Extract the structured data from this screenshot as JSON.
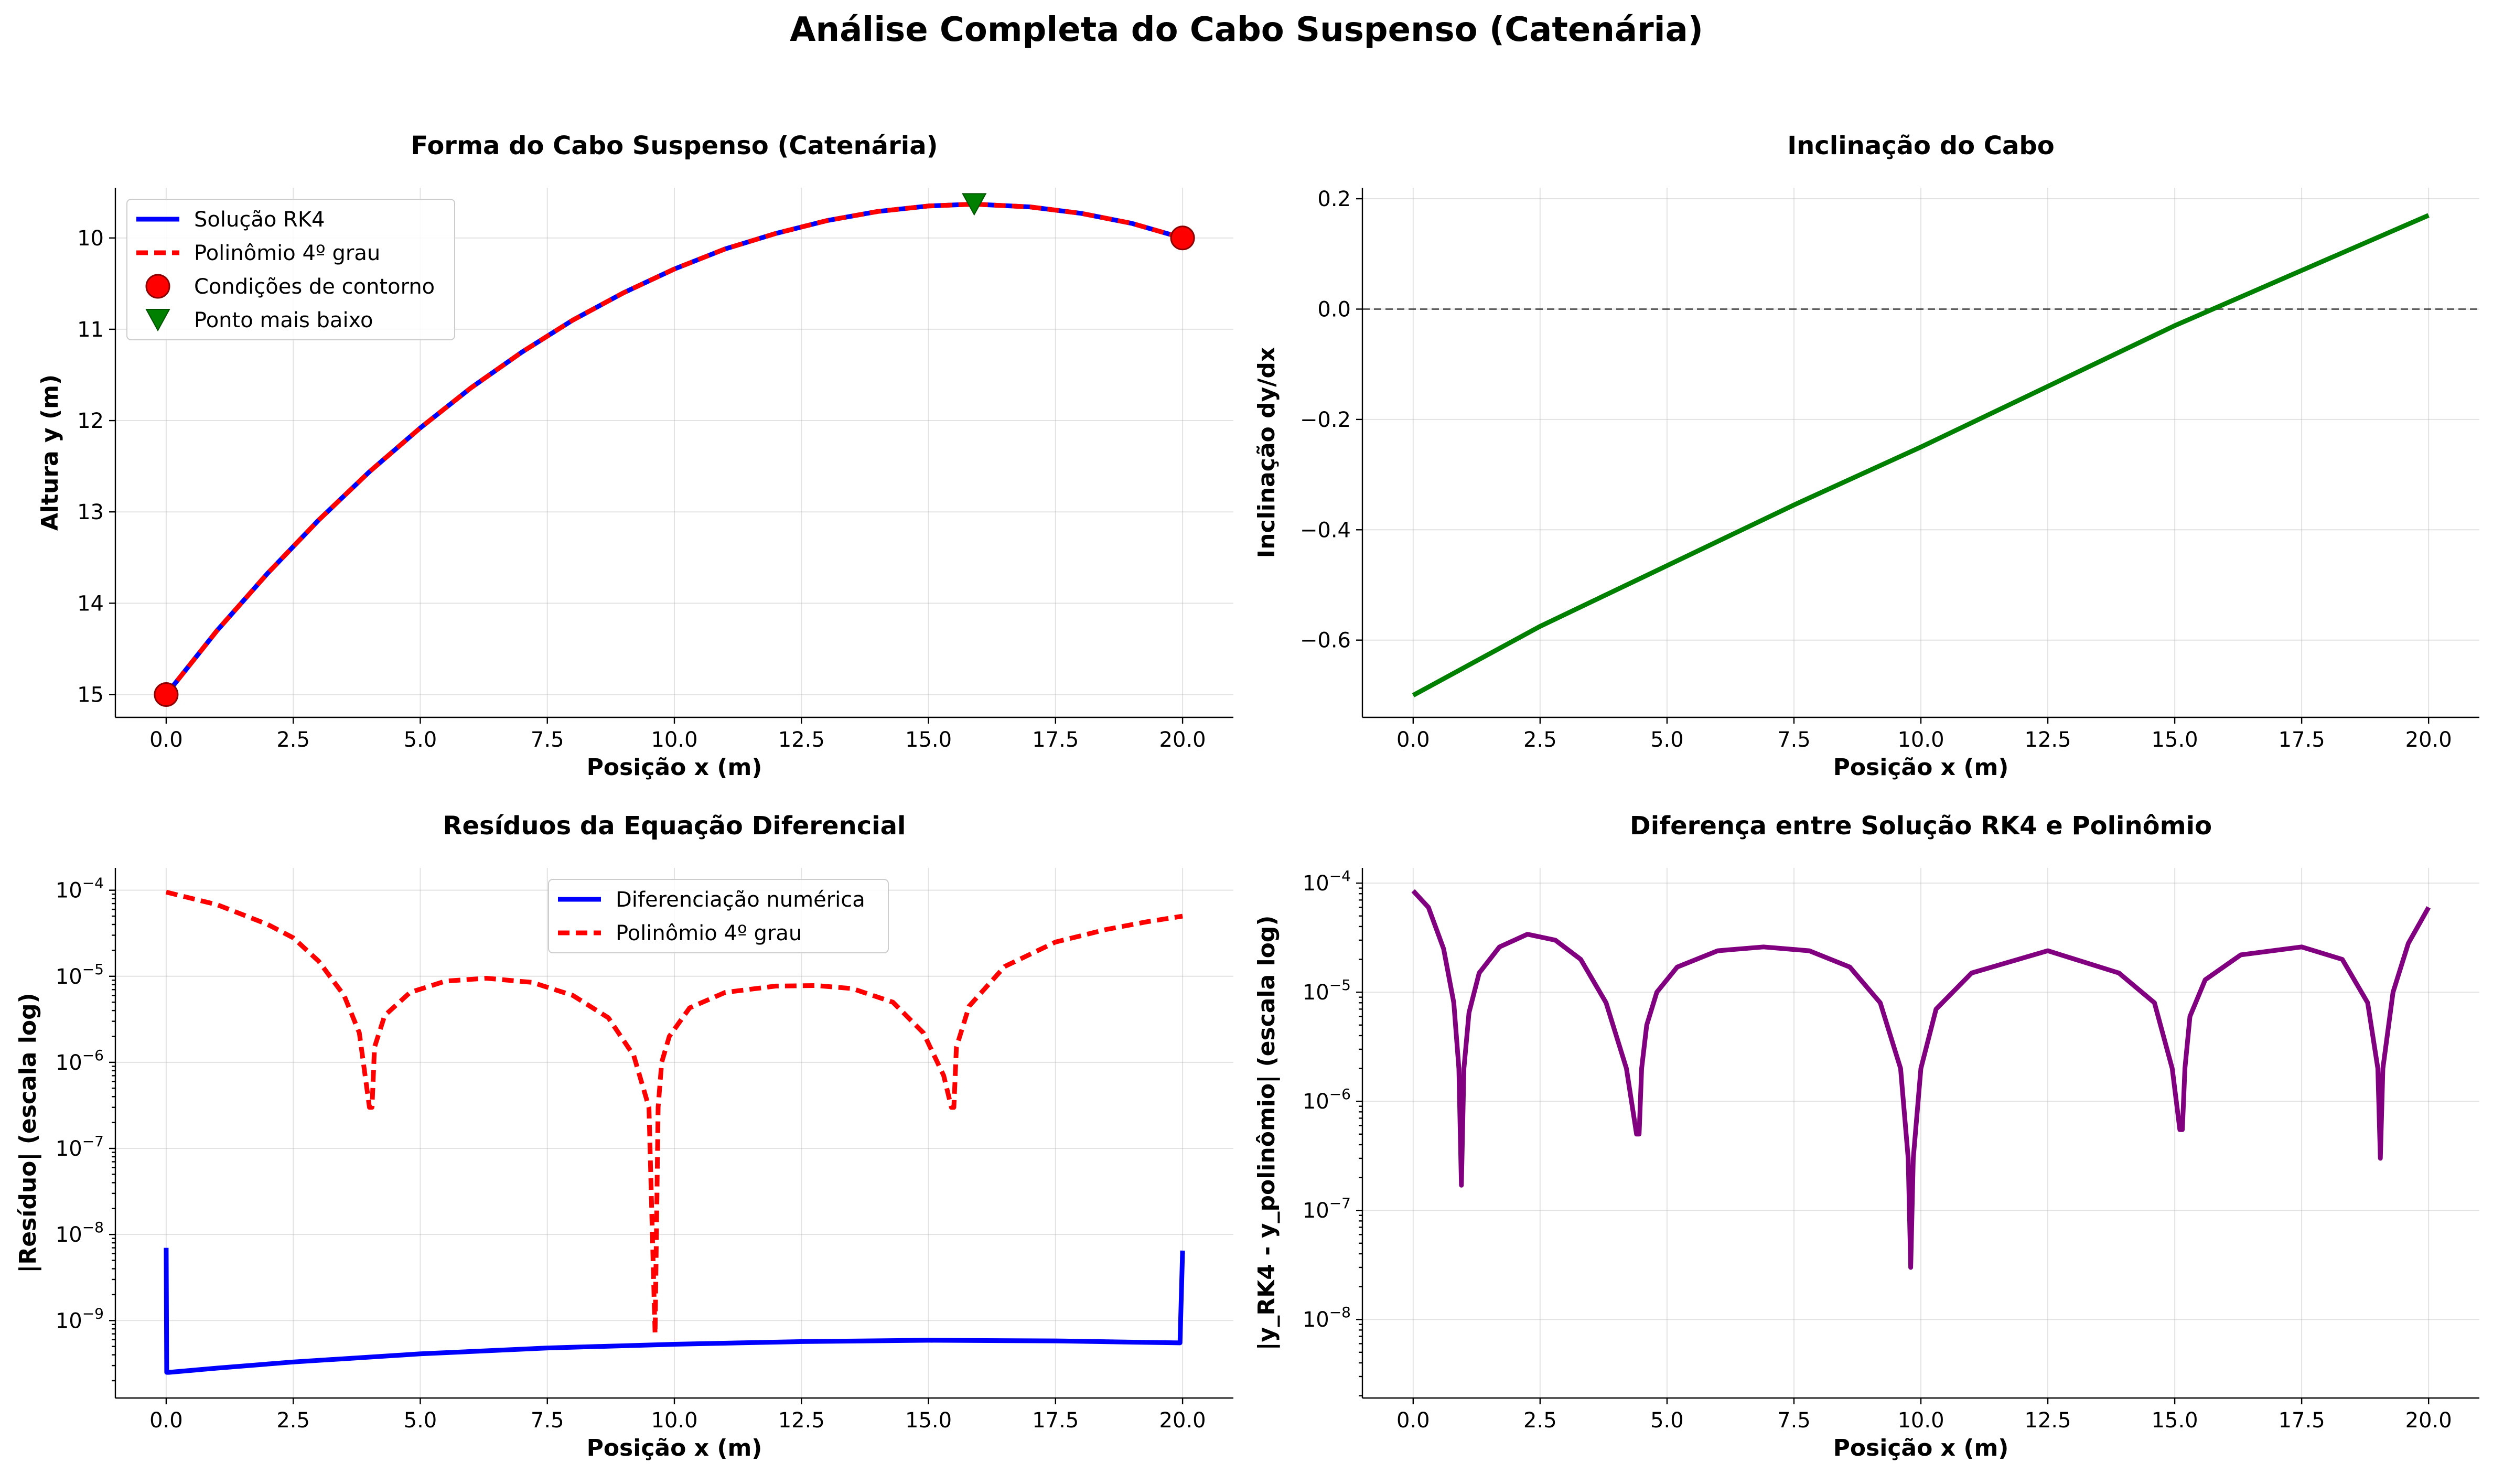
{
  "figure": {
    "suptitle": "Análise Completa do Cabo Suspenso (Catenária)"
  },
  "chart_data": [
    {
      "id": "shape",
      "type": "line",
      "title": "Forma do Cabo Suspenso (Catenária)",
      "xlabel": "Posição x (m)",
      "ylabel": "Altura y (m)",
      "xlim": [
        -1.0,
        21.0
      ],
      "ylim": [
        15.25,
        9.45
      ],
      "yscale": "linear",
      "y_inverted": true,
      "grid": true,
      "legend_position": "upper left",
      "x_ticks": [
        0,
        2.5,
        5,
        7.5,
        10,
        12.5,
        15,
        17.5,
        20
      ],
      "x_tick_labels": [
        "0.0",
        "2.5",
        "5.0",
        "7.5",
        "10.0",
        "12.5",
        "15.0",
        "17.5",
        "20.0"
      ],
      "y_ticks": [
        10,
        11,
        12,
        13,
        14,
        15
      ],
      "y_tick_labels": [
        "10",
        "11",
        "12",
        "13",
        "14",
        "15"
      ],
      "series": [
        {
          "name": "Solução RK4",
          "kind": "line",
          "color": "#0000ff",
          "dash": "solid",
          "x": [
            0,
            1,
            2,
            3,
            4,
            5,
            6,
            7,
            8,
            9,
            10,
            11,
            12,
            13,
            14,
            15,
            15.9,
            17,
            18,
            19,
            20
          ],
          "y": [
            15.0,
            14.3,
            13.67,
            13.09,
            12.56,
            12.08,
            11.64,
            11.25,
            10.9,
            10.6,
            10.34,
            10.12,
            9.95,
            9.81,
            9.71,
            9.65,
            9.63,
            9.66,
            9.73,
            9.84,
            10.0
          ]
        },
        {
          "name": "Polinômio 4º grau",
          "kind": "line",
          "color": "#ff0000",
          "dash": "dashed",
          "x": [
            0,
            1,
            2,
            3,
            4,
            5,
            6,
            7,
            8,
            9,
            10,
            11,
            12,
            13,
            14,
            15,
            15.9,
            17,
            18,
            19,
            20
          ],
          "y": [
            15.0,
            14.3,
            13.67,
            13.09,
            12.56,
            12.08,
            11.64,
            11.25,
            10.9,
            10.6,
            10.34,
            10.12,
            9.95,
            9.81,
            9.71,
            9.65,
            9.63,
            9.66,
            9.73,
            9.84,
            10.0
          ]
        },
        {
          "name": "Condições de contorno",
          "kind": "marker",
          "marker": "circle",
          "color": "#ff0000",
          "x": [
            0,
            20
          ],
          "y": [
            15.0,
            10.0
          ]
        },
        {
          "name": "Ponto mais baixo",
          "kind": "marker",
          "marker": "triangle-down",
          "color": "#008000",
          "x": [
            15.9
          ],
          "y": [
            9.63
          ]
        }
      ]
    },
    {
      "id": "slope",
      "type": "line",
      "title": "Inclinação do Cabo",
      "xlabel": "Posição x (m)",
      "ylabel": "Inclinação dy/dx",
      "xlim": [
        -1.0,
        21.0
      ],
      "ylim": [
        -0.74,
        0.22
      ],
      "yscale": "linear",
      "grid": true,
      "hline": 0.0,
      "x_ticks": [
        0,
        2.5,
        5,
        7.5,
        10,
        12.5,
        15,
        17.5,
        20
      ],
      "x_tick_labels": [
        "0.0",
        "2.5",
        "5.0",
        "7.5",
        "10.0",
        "12.5",
        "15.0",
        "17.5",
        "20.0"
      ],
      "y_ticks": [
        0.2,
        0.0,
        -0.2,
        -0.4,
        -0.6
      ],
      "y_tick_labels": [
        "0.2",
        "0.0",
        "−0.2",
        "−0.4",
        "−0.6"
      ],
      "series": [
        {
          "kind": "line",
          "color": "#008000",
          "dash": "solid",
          "x": [
            0,
            2.5,
            5,
            7.5,
            10,
            12.5,
            15,
            17.5,
            20
          ],
          "y": [
            -0.7,
            -0.575,
            -0.465,
            -0.355,
            -0.25,
            -0.14,
            -0.03,
            0.07,
            0.17
          ]
        }
      ]
    },
    {
      "id": "residuals",
      "type": "line",
      "title": "Resíduos da Equação Diferencial",
      "xlabel": "Posição x (m)",
      "ylabel": "|Resíduo| (escala log)",
      "xlim": [
        -1.0,
        21.0
      ],
      "ylim_log10": [
        -9.9,
        -3.74
      ],
      "yscale": "log",
      "grid": true,
      "legend_position": "upper center",
      "x_ticks": [
        0,
        2.5,
        5,
        7.5,
        10,
        12.5,
        15,
        17.5,
        20
      ],
      "x_tick_labels": [
        "0.0",
        "2.5",
        "5.0",
        "7.5",
        "10.0",
        "12.5",
        "15.0",
        "17.5",
        "20.0"
      ],
      "y_tick_exponents": [
        -9,
        -8,
        -7,
        -6,
        -5,
        -4
      ],
      "series": [
        {
          "name": "Diferenciação numérica",
          "kind": "line",
          "color": "#0000ff",
          "dash": "solid",
          "x": [
            0,
            0.01,
            0.05,
            1,
            2.5,
            5,
            7.5,
            10,
            12.5,
            15,
            17.5,
            19.95,
            20
          ],
          "y": [
            7e-09,
            2.5e-10,
            2.5e-10,
            2.8e-10,
            3.3e-10,
            4.1e-10,
            4.8e-10,
            5.3e-10,
            5.7e-10,
            5.9e-10,
            5.8e-10,
            5.5e-10,
            6.5e-09
          ]
        },
        {
          "name": "Polinômio 4º grau",
          "kind": "line",
          "color": "#ff0000",
          "dash": "dashed",
          "x": [
            0,
            1,
            2,
            2.5,
            3,
            3.5,
            3.8,
            4.0,
            4.05,
            4.1,
            4.3,
            4.8,
            5.5,
            6.3,
            7.2,
            8.0,
            8.7,
            9.2,
            9.5,
            9.62,
            9.68,
            9.75,
            9.9,
            10.3,
            11,
            12,
            12.8,
            13.5,
            14.3,
            14.9,
            15.3,
            15.45,
            15.5,
            15.55,
            15.8,
            16.5,
            17.5,
            18.5,
            19.3,
            20
          ],
          "y": [
            9.5e-05,
            6.8e-05,
            4e-05,
            2.8e-05,
            1.5e-05,
            6e-06,
            2.2e-06,
            3e-07,
            3e-07,
            1.5e-06,
            3.5e-06,
            6.5e-06,
            8.8e-06,
            9.5e-06,
            8.5e-06,
            6e-06,
            3.3e-06,
            1.2e-06,
            3e-07,
            7e-10,
            3e-07,
            1e-06,
            2e-06,
            4.3e-06,
            6.5e-06,
            7.7e-06,
            7.8e-06,
            7.2e-06,
            5e-06,
            2.2e-06,
            7e-07,
            3e-07,
            3e-07,
            1.5e-06,
            4.5e-06,
            1.3e-05,
            2.5e-05,
            3.5e-05,
            4.3e-05,
            5e-05
          ]
        }
      ]
    },
    {
      "id": "difference",
      "type": "line",
      "title": "Diferença entre Solução RK4 e Polinômio",
      "xlabel": "Posição x (m)",
      "ylabel": "|y_RK4 - y_polinômio| (escala log)",
      "xlim": [
        -1.0,
        21.0
      ],
      "ylim_log10": [
        -8.72,
        -3.86
      ],
      "yscale": "log",
      "grid": true,
      "x_ticks": [
        0,
        2.5,
        5,
        7.5,
        10,
        12.5,
        15,
        17.5,
        20
      ],
      "x_tick_labels": [
        "0.0",
        "2.5",
        "5.0",
        "7.5",
        "10.0",
        "12.5",
        "15.0",
        "17.5",
        "20.0"
      ],
      "y_tick_exponents": [
        -8,
        -7,
        -6,
        -5,
        -4
      ],
      "series": [
        {
          "kind": "line",
          "color": "#800080",
          "dash": "solid",
          "x": [
            0,
            0.3,
            0.6,
            0.8,
            0.9,
            0.95,
            1.0,
            1.1,
            1.3,
            1.7,
            2.25,
            2.8,
            3.3,
            3.8,
            4.2,
            4.4,
            4.45,
            4.5,
            4.6,
            4.8,
            5.2,
            6.0,
            6.9,
            7.8,
            8.6,
            9.2,
            9.6,
            9.75,
            9.8,
            9.85,
            10.0,
            10.3,
            11.0,
            12.5,
            13.9,
            14.6,
            14.95,
            15.1,
            15.15,
            15.2,
            15.3,
            15.6,
            16.3,
            17.5,
            18.3,
            18.8,
            19.0,
            19.05,
            19.1,
            19.3,
            19.6,
            20.0
          ],
          "y": [
            8.5e-05,
            6e-05,
            2.5e-05,
            8e-06,
            2e-06,
            1.7e-07,
            2e-06,
            6.5e-06,
            1.5e-05,
            2.6e-05,
            3.4e-05,
            3e-05,
            2e-05,
            8e-06,
            2e-06,
            5e-07,
            5e-07,
            2e-06,
            5e-06,
            1e-05,
            1.7e-05,
            2.4e-05,
            2.6e-05,
            2.4e-05,
            1.7e-05,
            8e-06,
            2e-06,
            3e-07,
            3e-08,
            3e-07,
            2e-06,
            7e-06,
            1.5e-05,
            2.4e-05,
            1.5e-05,
            8e-06,
            2e-06,
            5.5e-07,
            5.5e-07,
            2e-06,
            6e-06,
            1.3e-05,
            2.2e-05,
            2.6e-05,
            2e-05,
            8e-06,
            2e-06,
            3e-07,
            2e-06,
            1e-05,
            2.8e-05,
            6e-05
          ]
        }
      ]
    }
  ]
}
